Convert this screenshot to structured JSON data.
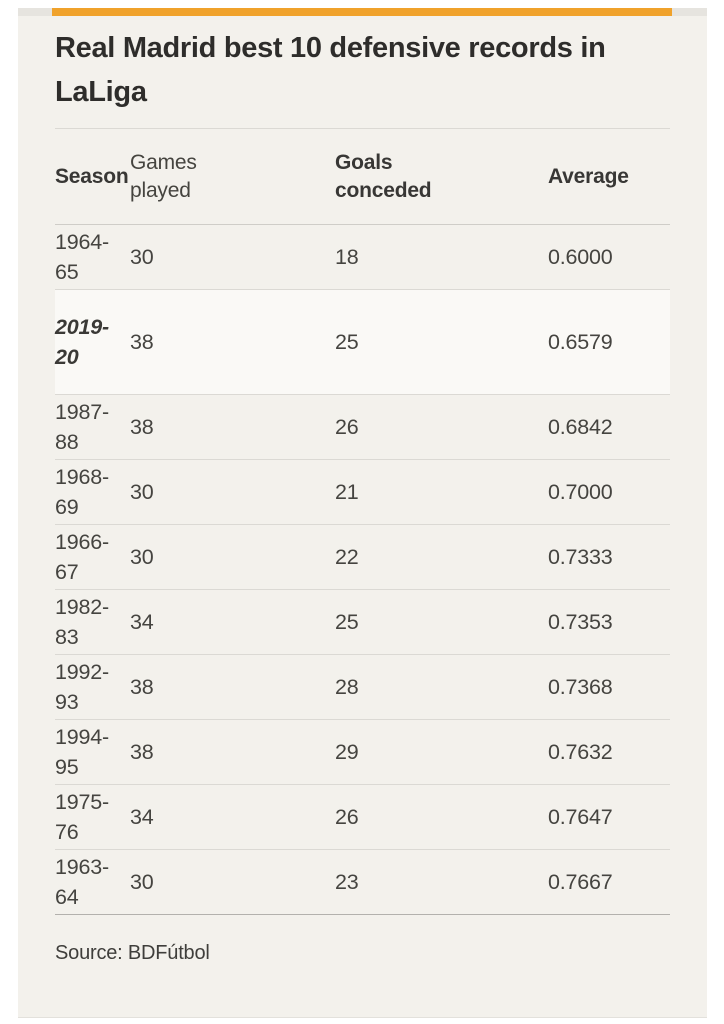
{
  "chart_data": {
    "type": "table",
    "title": "Real Madrid best 10 defensive records in LaLiga",
    "columns": [
      "Season",
      "Games played",
      "Goals conceded",
      "Average"
    ],
    "rows": [
      {
        "season": "1964-65",
        "games": "30",
        "goals": "18",
        "average": "0.6000",
        "highlighted": false
      },
      {
        "season": "2019-20",
        "games": "38",
        "goals": "25",
        "average": "0.6579",
        "highlighted": true
      },
      {
        "season": "1987-88",
        "games": "38",
        "goals": "26",
        "average": "0.6842",
        "highlighted": false
      },
      {
        "season": "1968-69",
        "games": "30",
        "goals": "21",
        "average": "0.7000",
        "highlighted": false
      },
      {
        "season": "1966-67",
        "games": "30",
        "goals": "22",
        "average": "0.7333",
        "highlighted": false
      },
      {
        "season": "1982-83",
        "games": "34",
        "goals": "25",
        "average": "0.7353",
        "highlighted": false
      },
      {
        "season": "1992-93",
        "games": "38",
        "goals": "28",
        "average": "0.7368",
        "highlighted": false
      },
      {
        "season": "1994-95",
        "games": "38",
        "goals": "29",
        "average": "0.7632",
        "highlighted": false
      },
      {
        "season": "1975-76",
        "games": "34",
        "goals": "26",
        "average": "0.7647",
        "highlighted": false
      },
      {
        "season": "1963-64",
        "games": "30",
        "goals": "23",
        "average": "0.7667",
        "highlighted": false
      }
    ],
    "highlighted_row": "2019-20",
    "source": "Source: BDFútbol",
    "layout_hints": {
      "grid": "horizontal row separators",
      "legend": "none"
    }
  },
  "colors": {
    "accent": "#f0a22b",
    "bar_bg": "#e6e4df",
    "panel_bg": "#f3f1ec",
    "title_text": "#2e2d2b",
    "body_text": "#454440",
    "row_separator": "#dbd9d4",
    "table_bottom_border": "#b3b1ad"
  }
}
